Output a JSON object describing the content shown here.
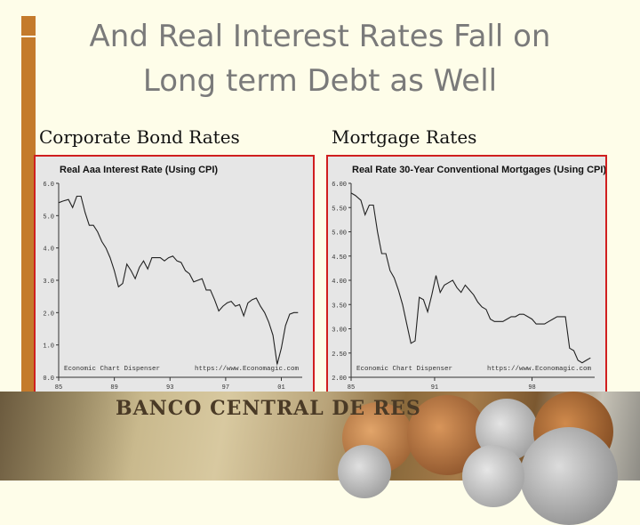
{
  "slide": {
    "title_line1": "And Real Interest Rates Fall on",
    "title_line2": "Long term Debt as Well",
    "left_heading": "Corporate Bond Rates",
    "right_heading": "Mortgage Rates",
    "banknote_text": "BANCO CENTRAL DE RES"
  },
  "chart_data": [
    {
      "type": "line",
      "title": "Real Aaa Interest Rate (Using CPI)",
      "source_left": "Economic Chart Dispenser",
      "source_right": "https://www.Economagic.com",
      "ylim": [
        0,
        6
      ],
      "yticks": [
        "0.0",
        "1.0",
        "2.0",
        "3.0",
        "4.0",
        "5.0",
        "6.0"
      ],
      "xlim": [
        1985,
        2002.5
      ],
      "xticks": [
        {
          "value": 1985,
          "label": "85"
        },
        {
          "value": 1989,
          "label": "89"
        },
        {
          "value": 1993,
          "label": "93"
        },
        {
          "value": 1997,
          "label": "97"
        },
        {
          "value": 2001,
          "label": "01"
        }
      ],
      "line_color": "#222222",
      "series": [
        {
          "x": [
            1985.0,
            1985.3,
            1985.7,
            1986.0,
            1986.3,
            1986.6,
            1986.9,
            1987.2,
            1987.5,
            1987.8,
            1988.1,
            1988.4,
            1988.7,
            1989.0,
            1989.3,
            1989.6,
            1989.9,
            1990.2,
            1990.5,
            1990.8,
            1991.1,
            1991.4,
            1991.7,
            1992.0,
            1992.3,
            1992.6,
            1992.9,
            1993.2,
            1993.5,
            1993.8,
            1994.1,
            1994.4,
            1994.7,
            1995.0,
            1995.3,
            1995.6,
            1995.9,
            1996.2,
            1996.5,
            1996.8,
            1997.1,
            1997.4,
            1997.7,
            1998.0,
            1998.3,
            1998.6,
            1998.9,
            1999.2,
            1999.5,
            1999.8,
            2000.1,
            2000.4,
            2000.7,
            2001.0,
            2001.3,
            2001.6,
            2001.9,
            2002.2
          ],
          "y": [
            5.4,
            5.45,
            5.5,
            5.25,
            5.6,
            5.6,
            5.1,
            4.7,
            4.7,
            4.5,
            4.2,
            4.0,
            3.7,
            3.3,
            2.8,
            2.9,
            3.5,
            3.3,
            3.05,
            3.4,
            3.6,
            3.35,
            3.7,
            3.7,
            3.7,
            3.6,
            3.7,
            3.75,
            3.6,
            3.55,
            3.3,
            3.2,
            2.95,
            3.0,
            3.05,
            2.7,
            2.7,
            2.4,
            2.05,
            2.2,
            2.3,
            2.35,
            2.2,
            2.25,
            1.9,
            2.3,
            2.4,
            2.45,
            2.2,
            2.0,
            1.7,
            1.3,
            0.4,
            0.9,
            1.6,
            1.95,
            2.0,
            2.0
          ]
        }
      ]
    },
    {
      "type": "line",
      "title": "Real Rate 30-Year Conventional Mortgages (Using CPI)",
      "source_left": "Economic Chart Dispenser",
      "source_right": "https://www.Economagic.com",
      "ylim": [
        2,
        6
      ],
      "yticks": [
        "2.00",
        "2.50",
        "3.00",
        "3.50",
        "4.00",
        "4.50",
        "5.00",
        "5.50",
        "6.00"
      ],
      "xlim": [
        1985,
        2002.5
      ],
      "xticks": [
        {
          "value": 1985,
          "label": "85"
        },
        {
          "value": 1991,
          "label": "91"
        },
        {
          "value": 1998,
          "label": "98"
        }
      ],
      "line_color": "#222222",
      "series": [
        {
          "x": [
            1985.0,
            1985.3,
            1985.7,
            1986.0,
            1986.3,
            1986.6,
            1986.9,
            1987.2,
            1987.5,
            1987.8,
            1988.1,
            1988.4,
            1988.7,
            1989.0,
            1989.3,
            1989.6,
            1989.9,
            1990.2,
            1990.5,
            1990.8,
            1991.1,
            1991.4,
            1991.7,
            1992.0,
            1992.3,
            1992.6,
            1992.9,
            1993.2,
            1993.5,
            1993.8,
            1994.1,
            1994.4,
            1994.7,
            1995.0,
            1995.3,
            1995.6,
            1995.9,
            1996.2,
            1996.5,
            1996.8,
            1997.1,
            1997.4,
            1997.7,
            1998.0,
            1998.3,
            1998.6,
            1998.9,
            1999.2,
            1999.5,
            1999.8,
            2000.1,
            2000.4,
            2000.7,
            2001.0,
            2001.3,
            2001.6,
            2001.9,
            2002.2
          ],
          "y": [
            5.8,
            5.75,
            5.65,
            5.35,
            5.55,
            5.55,
            5.0,
            4.55,
            4.55,
            4.2,
            4.05,
            3.8,
            3.5,
            3.1,
            2.7,
            2.75,
            3.65,
            3.6,
            3.35,
            3.7,
            4.1,
            3.75,
            3.9,
            3.95,
            4.0,
            3.85,
            3.75,
            3.9,
            3.8,
            3.7,
            3.55,
            3.45,
            3.4,
            3.2,
            3.15,
            3.15,
            3.15,
            3.2,
            3.25,
            3.25,
            3.3,
            3.3,
            3.25,
            3.2,
            3.1,
            3.1,
            3.1,
            3.15,
            3.2,
            3.25,
            3.25,
            3.25,
            2.6,
            2.55,
            2.35,
            2.3,
            2.35,
            2.4
          ]
        }
      ]
    }
  ]
}
